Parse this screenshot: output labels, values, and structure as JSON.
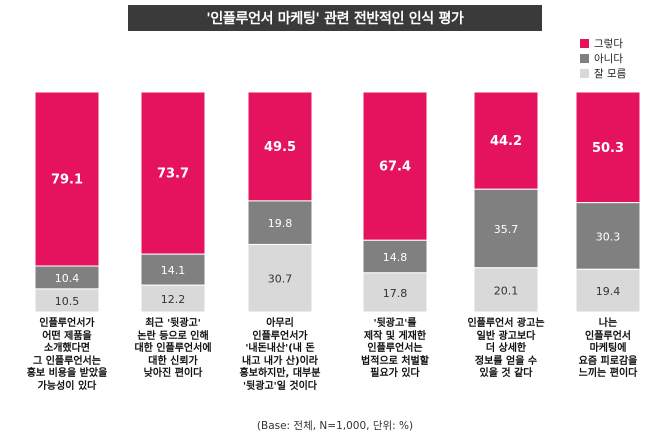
{
  "chart_data": {
    "type": "bar",
    "stacked": true,
    "title": "'인플루언서 마케팅' 관련 전반적인 인식 평가",
    "categories": [
      "인플루언서가 어떤 제품을 소개했다면 그 인플루언서는 홍보 비용을 받았을 가능성이 있다",
      "최근 '뒷광고' 논란 등으로 인해 대한 인플루언서에 대한 신뢰가 낮아진 편이다",
      "아무리 인플루언서가 '내돈내산'(내 돈 내고 내가 산)이라 홍보하지만, 대부분 '뒷광고'일 것이다",
      "'뒷광고'를 제작 및 게재한 인플루언서는 법적으로 처벌할 필요가 있다",
      "인플루언서 광고는 일반 광고보다 더 상세한 정보를 얻을 수 있을 것 같다",
      "나는 인플루언서 마케팅에 요즘 피로감을 느끼는 편이다"
    ],
    "category_lines": [
      [
        "인플루언서가",
        "어떤 제품을",
        "소개했다면",
        "그 인플루언서는",
        "홍보 비용을 받았을",
        "가능성이 있다"
      ],
      [
        "최근 '뒷광고'",
        "논란 등으로 인해",
        "대한 인플루언서에",
        "대한 신뢰가",
        "낮아진 편이다"
      ],
      [
        "아무리",
        "인플루언서가",
        "'내돈내산'(내 돈",
        "내고 내가 산)이라",
        "홍보하지만, 대부분",
        "'뒷광고'일 것이다"
      ],
      [
        "'뒷광고'를",
        "제작 및 게재한",
        "인플루언서는",
        "법적으로 처벌할",
        "필요가 있다"
      ],
      [
        "인플루언서 광고는",
        "일반 광고보다",
        "더 상세한",
        "정보를 얻을 수",
        "있을 것 같다"
      ],
      [
        "나는",
        "인플루언서",
        "마케팅에",
        "요즘 피로감을",
        "느끼는 편이다"
      ]
    ],
    "series": [
      {
        "name": "그렇다",
        "values": [
          79.1,
          73.7,
          49.5,
          67.4,
          44.2,
          50.3
        ]
      },
      {
        "name": "아니다",
        "values": [
          10.4,
          14.1,
          19.8,
          14.8,
          35.7,
          30.3
        ]
      },
      {
        "name": "잘 모름",
        "values": [
          10.5,
          12.2,
          30.7,
          17.8,
          20.1,
          19.4
        ]
      }
    ],
    "value_labels": [
      [
        "79.1",
        "73.7",
        "49.5",
        "67.4",
        "44.2",
        "50.3"
      ],
      [
        "10.4",
        "14.1",
        "19.8",
        "14.8",
        "35.7",
        "30.3"
      ],
      [
        "10.5",
        "12.2",
        "30.7",
        "17.8",
        "20.1",
        "19.4"
      ]
    ],
    "colors": [
      "#e5135e",
      "#808080",
      "#d9d9d9"
    ],
    "ylim": [
      0,
      100
    ],
    "legend_position": "top-right",
    "grid": false,
    "footnote": "(Base: 전체, N=1,000, 단위: %)"
  }
}
